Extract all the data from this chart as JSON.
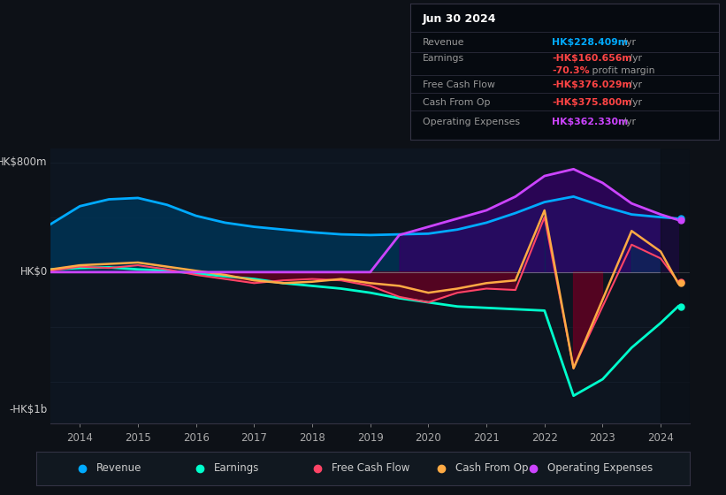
{
  "bg_color": "#0d1117",
  "plot_bg_color": "#0d1520",
  "ylabel_800": "HK$800m",
  "ylabel_0": "HK$0",
  "ylabel_neg1b": "-HK$1b",
  "legend_items": [
    {
      "label": "Revenue",
      "color": "#00aaff"
    },
    {
      "label": "Earnings",
      "color": "#00ffcc"
    },
    {
      "label": "Free Cash Flow",
      "color": "#ff4466"
    },
    {
      "label": "Cash From Op",
      "color": "#ffaa44"
    },
    {
      "label": "Operating Expenses",
      "color": "#cc44ff"
    }
  ],
  "years": [
    2013.5,
    2014.0,
    2014.5,
    2015.0,
    2015.5,
    2016.0,
    2016.5,
    2017.0,
    2017.5,
    2018.0,
    2018.5,
    2019.0,
    2019.5,
    2020.0,
    2020.5,
    2021.0,
    2021.5,
    2022.0,
    2022.5,
    2023.0,
    2023.5,
    2024.0,
    2024.3
  ],
  "revenue": [
    350,
    480,
    530,
    540,
    490,
    410,
    360,
    330,
    310,
    290,
    275,
    270,
    275,
    280,
    310,
    360,
    430,
    510,
    550,
    480,
    420,
    400,
    390
  ],
  "earnings": [
    20,
    30,
    35,
    20,
    10,
    -10,
    -30,
    -50,
    -80,
    -100,
    -120,
    -150,
    -190,
    -220,
    -250,
    -260,
    -270,
    -280,
    -900,
    -780,
    -550,
    -370,
    -250
  ],
  "free_cash_flow": [
    10,
    40,
    30,
    50,
    20,
    -20,
    -50,
    -80,
    -60,
    -50,
    -60,
    -100,
    -180,
    -220,
    -150,
    -120,
    -130,
    400,
    -700,
    -250,
    200,
    100,
    -70
  ],
  "cash_from_op": [
    20,
    50,
    60,
    70,
    40,
    10,
    -20,
    -60,
    -80,
    -70,
    -50,
    -80,
    -100,
    -150,
    -120,
    -80,
    -60,
    450,
    -700,
    -200,
    300,
    150,
    -80
  ],
  "op_expenses": [
    0,
    0,
    0,
    0,
    0,
    0,
    0,
    0,
    0,
    0,
    0,
    0,
    270,
    330,
    390,
    450,
    550,
    700,
    750,
    650,
    500,
    420,
    380
  ],
  "revenue_color": "#00aaff",
  "earnings_color": "#00ffcc",
  "fcf_color": "#ff4466",
  "cfop_color": "#ffaa44",
  "opex_color": "#cc44ff",
  "revenue_fill_color": "#003355",
  "opex_fill_color": "#330066",
  "fcf_fill_neg_color": "#660022",
  "fcf_fill_pos_color": "#003355",
  "zero_line_color": "#888888",
  "grid_color": "#1e2a38",
  "ylim": [
    -1100,
    900
  ],
  "xlim": [
    2013.5,
    2024.5
  ],
  "info_rows": [
    {
      "label": "Revenue",
      "val": "HK$228.409m",
      "suffix": " /yr",
      "val_color": "#00aaff",
      "indent": false
    },
    {
      "label": "Earnings",
      "val": "-HK$160.656m",
      "suffix": " /yr",
      "val_color": "#ff4444",
      "indent": false
    },
    {
      "label": "",
      "val": "-70.3%",
      "suffix": " profit margin",
      "val_color": "#ff4444",
      "indent": true
    },
    {
      "label": "Free Cash Flow",
      "val": "-HK$376.029m",
      "suffix": " /yr",
      "val_color": "#ff4444",
      "indent": false
    },
    {
      "label": "Cash From Op",
      "val": "-HK$375.800m",
      "suffix": " /yr",
      "val_color": "#ff4444",
      "indent": false
    },
    {
      "label": "Operating Expenses",
      "val": "HK$362.330m",
      "suffix": " /yr",
      "val_color": "#cc44ff",
      "indent": false
    }
  ]
}
